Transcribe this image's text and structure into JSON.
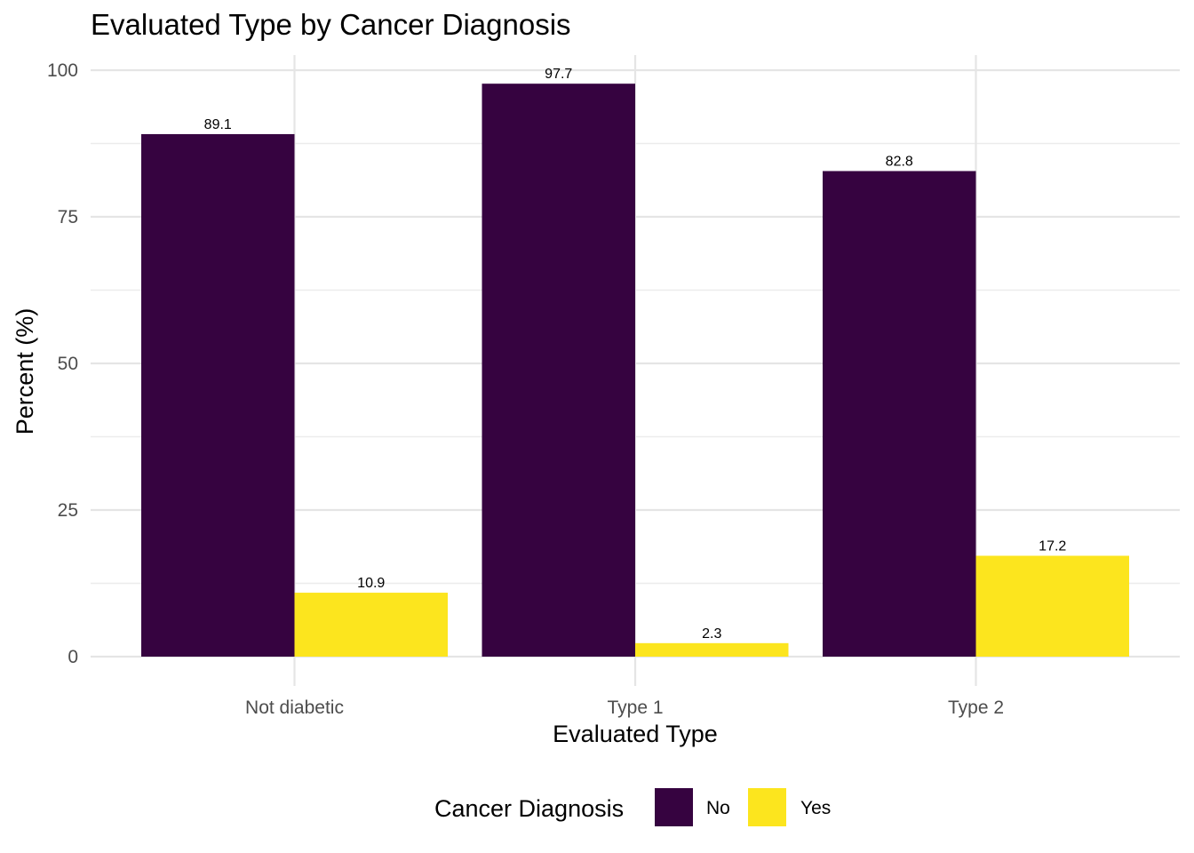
{
  "chart_data": {
    "type": "bar",
    "title": "Evaluated Type by Cancer Diagnosis",
    "xlabel": "Evaluated Type",
    "ylabel": "Percent (%)",
    "categories": [
      "Not diabetic",
      "Type 1",
      "Type 2"
    ],
    "series": [
      {
        "name": "No",
        "values": [
          89.1,
          97.7,
          82.8
        ],
        "labels": [
          "89.1",
          "97.7",
          "82.8"
        ],
        "color": "#360340"
      },
      {
        "name": "Yes",
        "values": [
          10.9,
          2.3,
          17.2
        ],
        "labels": [
          "10.9",
          "2.3",
          "17.2"
        ],
        "color": "#fce51e"
      }
    ],
    "ylim": [
      0,
      100
    ],
    "yticks": [
      0,
      25,
      50,
      75,
      100
    ],
    "grid": true,
    "legend": {
      "title": "Cancer Diagnosis",
      "position": "bottom"
    }
  }
}
